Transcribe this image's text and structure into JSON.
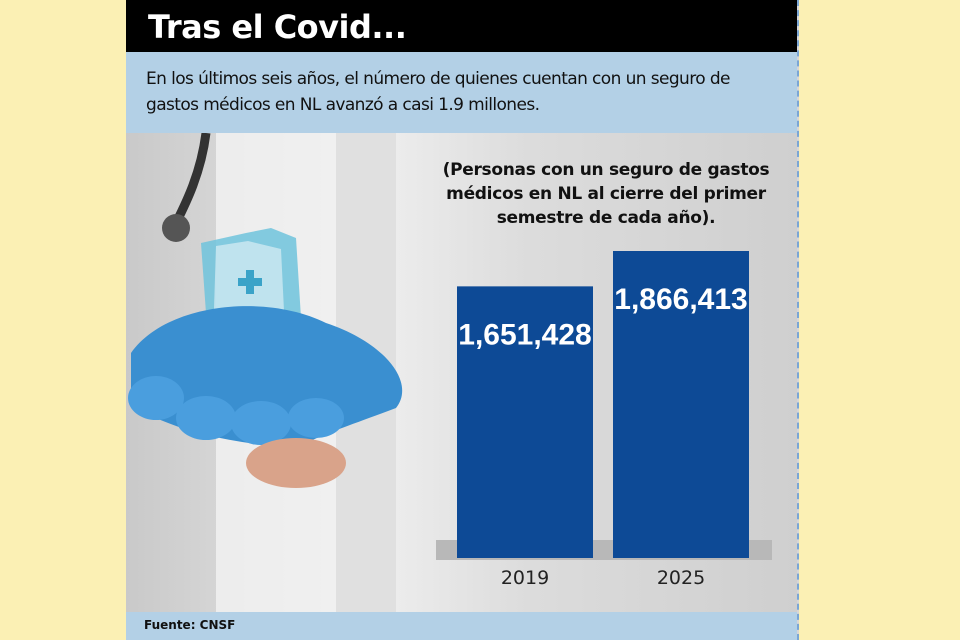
{
  "header": {
    "title": "Tras el Covid...",
    "subtitle": "En los últimos seis años, el número de quienes cuentan con un seguro de gastos médicos en NL avanzó a casi 1.9 millones."
  },
  "chart_data": {
    "type": "bar",
    "title": "(Personas con un seguro de gastos médicos en NL al cierre del primer semestre de cada año).",
    "categories": [
      "2019",
      "2025"
    ],
    "values": [
      1651428,
      1866413
    ],
    "data_labels": [
      "1,651,428",
      "1,866,413"
    ],
    "bar_color": "#0d4a96",
    "ylim": [
      0,
      1866413
    ],
    "grid": false
  },
  "footer": {
    "source": "Fuente: CNSF"
  },
  "colors": {
    "background": "#fbf0b4",
    "band": "#b3d0e6",
    "title_bar": "#000000"
  }
}
